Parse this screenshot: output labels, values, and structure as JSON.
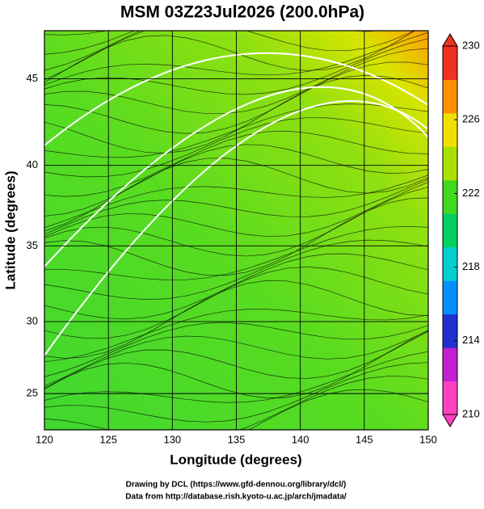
{
  "chart_data": {
    "type": "map",
    "title": "MSM 03Z23Jul2026 (200.0hPa)",
    "xlabel": "Longitude (degrees)",
    "ylabel": "Latitude  (degrees)",
    "projection": "mercator",
    "xlim": [
      120,
      150
    ],
    "xticks": [
      120,
      125,
      130,
      135,
      140,
      145,
      150
    ],
    "ylim": [
      22.4,
      47.6
    ],
    "yticks": [
      25,
      30,
      35,
      40,
      45
    ],
    "grid": true,
    "colorbar": {
      "lim": [
        210,
        230
      ],
      "ticks": [
        210,
        214,
        218,
        222,
        226,
        230
      ],
      "colors": [
        "#ff40c0",
        "#c020d0",
        "#2030d0",
        "#0090ff",
        "#00d0d0",
        "#00d060",
        "#40d820",
        "#a8e000",
        "#f0e000",
        "#ff9000",
        "#f03020"
      ]
    },
    "credits": [
      "Drawing by DCL (https://www.gfd-dennou.org/library/dcl/)",
      "Data from http://database.rish.kyoto-u.ac.jp/arch/jmadata/"
    ]
  }
}
